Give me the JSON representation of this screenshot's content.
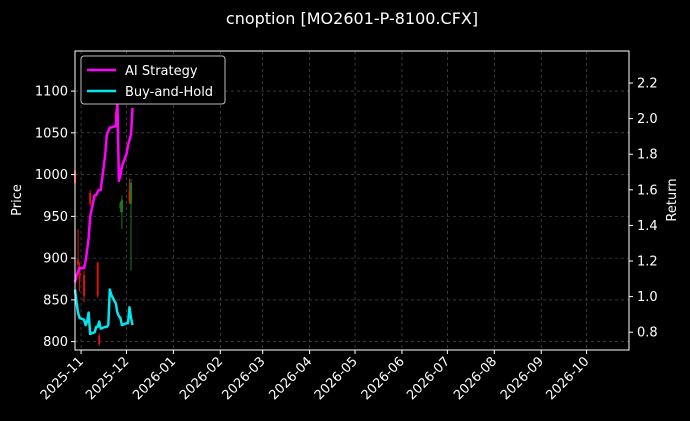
{
  "chart_data": {
    "type": "line",
    "title": "cnoption [MO2601-P-8100.CFX]",
    "ylabel": "Price",
    "ylabel_right": "Return",
    "xlim": [
      "2025-10-28",
      "2026-10-29"
    ],
    "ylim": [
      790,
      1148
    ],
    "ylim_right": [
      0.7,
      2.38
    ],
    "grid": true,
    "legend_position": "top-left",
    "colors": {
      "background": "#000000",
      "grid": "#5a5a5a",
      "axis": "#ffffff",
      "up_candle": "#1a7a1a",
      "down_candle": "#e01010"
    },
    "x_ticks": [
      "2025-11",
      "2025-12",
      "2026-01",
      "2026-02",
      "2026-03",
      "2026-04",
      "2026-05",
      "2026-06",
      "2026-07",
      "2026-08",
      "2026-09",
      "2026-10"
    ],
    "y_ticks_left": [
      800,
      850,
      900,
      950,
      1000,
      1050,
      1100
    ],
    "y_ticks_right": [
      0.8,
      1.0,
      1.2,
      1.4,
      1.6,
      1.8,
      2.0,
      2.2
    ],
    "series": [
      {
        "name": "AI Strategy",
        "color": "#ff00ff",
        "axis": "right",
        "x": [
          "2025-10-28",
          "2025-10-29",
          "2025-10-30",
          "2025-10-31",
          "2025-11-03",
          "2025-11-04",
          "2025-11-05",
          "2025-11-06",
          "2025-11-07",
          "2025-11-10",
          "2025-11-11",
          "2025-11-12",
          "2025-11-13",
          "2025-11-14",
          "2025-11-17",
          "2025-11-18",
          "2025-11-19",
          "2025-11-20",
          "2025-11-21",
          "2025-11-24",
          "2025-11-25",
          "2025-11-26",
          "2025-11-27",
          "2025-11-28",
          "2025-12-01",
          "2025-12-02",
          "2025-12-03",
          "2025-12-04",
          "2025-12-05"
        ],
        "values": [
          1.08,
          1.12,
          1.14,
          1.16,
          1.16,
          1.2,
          1.26,
          1.33,
          1.45,
          1.57,
          1.57,
          1.59,
          1.6,
          1.6,
          1.8,
          1.91,
          1.93,
          1.95,
          1.95,
          1.96,
          2.09,
          1.65,
          1.68,
          1.73,
          1.8,
          1.85,
          1.88,
          1.91,
          2.06
        ]
      },
      {
        "name": "Buy-and-Hold",
        "color": "#00e5ee",
        "axis": "right",
        "x": [
          "2025-10-28",
          "2025-10-29",
          "2025-10-30",
          "2025-10-31",
          "2025-11-03",
          "2025-11-04",
          "2025-11-05",
          "2025-11-06",
          "2025-11-07",
          "2025-11-10",
          "2025-11-11",
          "2025-11-12",
          "2025-11-13",
          "2025-11-14",
          "2025-11-17",
          "2025-11-18",
          "2025-11-19",
          "2025-11-20",
          "2025-11-21",
          "2025-11-24",
          "2025-11-25",
          "2025-11-26",
          "2025-11-27",
          "2025-11-28",
          "2025-12-01",
          "2025-12-02",
          "2025-12-03",
          "2025-12-04",
          "2025-12-05"
        ],
        "values": [
          1.04,
          0.97,
          0.91,
          0.88,
          0.87,
          0.84,
          0.86,
          0.91,
          0.79,
          0.8,
          0.83,
          0.83,
          0.86,
          0.82,
          0.83,
          0.83,
          0.84,
          1.04,
          1.01,
          0.96,
          0.91,
          0.89,
          0.88,
          0.84,
          0.85,
          0.85,
          0.94,
          0.88,
          0.84
        ]
      }
    ],
    "candles": [
      {
        "x": "2025-10-28",
        "open": 1005,
        "high": 1010,
        "low": 985,
        "close": 990
      },
      {
        "x": "2025-10-30",
        "open": 898,
        "high": 935,
        "low": 880,
        "close": 892
      },
      {
        "x": "2025-10-31",
        "open": 890,
        "high": 895,
        "low": 860,
        "close": 875
      },
      {
        "x": "2025-11-03",
        "open": 880,
        "high": 885,
        "low": 847,
        "close": 855
      },
      {
        "x": "2025-11-07",
        "open": 978,
        "high": 982,
        "low": 962,
        "close": 965
      },
      {
        "x": "2025-11-12",
        "open": 895,
        "high": 895,
        "low": 853,
        "close": 855
      },
      {
        "x": "2025-11-13",
        "open": 807,
        "high": 810,
        "low": 795,
        "close": 797
      },
      {
        "x": "2025-11-24",
        "open": 1075,
        "high": 1078,
        "low": 1060,
        "close": 1062
      },
      {
        "x": "2025-11-27",
        "open": 960,
        "high": 968,
        "low": 955,
        "close": 966
      },
      {
        "x": "2025-11-28",
        "open": 955,
        "high": 975,
        "low": 935,
        "close": 970
      },
      {
        "x": "2025-12-03",
        "open": 980,
        "high": 995,
        "low": 965,
        "close": 968
      },
      {
        "x": "2025-12-04",
        "open": 965,
        "high": 995,
        "low": 885,
        "close": 990
      }
    ]
  }
}
